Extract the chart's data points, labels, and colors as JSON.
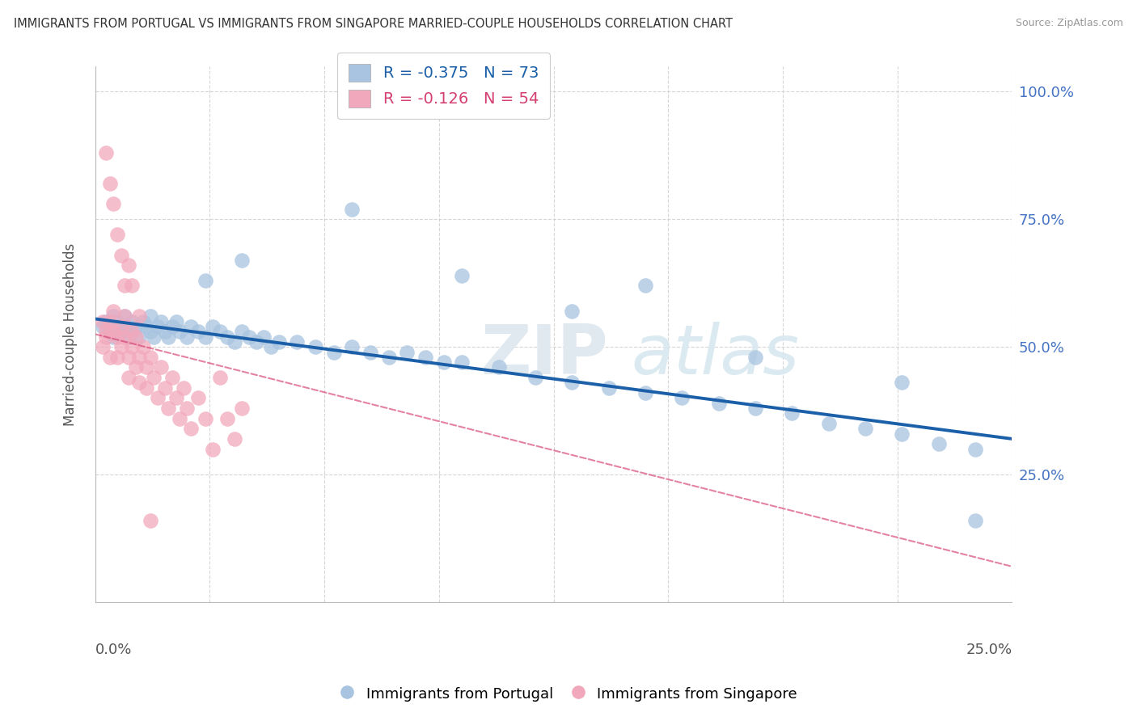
{
  "title": "IMMIGRANTS FROM PORTUGAL VS IMMIGRANTS FROM SINGAPORE MARRIED-COUPLE HOUSEHOLDS CORRELATION CHART",
  "source": "Source: ZipAtlas.com",
  "ylabel": "Married-couple Households",
  "legend_blue": {
    "R": -0.375,
    "N": 73,
    "label": "Immigrants from Portugal"
  },
  "legend_pink": {
    "R": -0.126,
    "N": 54,
    "label": "Immigrants from Singapore"
  },
  "blue_color": "#a8c4e0",
  "pink_color": "#f2a8bc",
  "blue_line_color": "#1a5fa8",
  "pink_line_color": "#d44070",
  "xlim": [
    0.0,
    0.25
  ],
  "ylim": [
    0.0,
    1.05
  ],
  "blue_x": [
    0.002,
    0.003,
    0.004,
    0.005,
    0.005,
    0.006,
    0.007,
    0.007,
    0.008,
    0.009,
    0.01,
    0.01,
    0.011,
    0.012,
    0.013,
    0.014,
    0.015,
    0.015,
    0.016,
    0.017,
    0.018,
    0.019,
    0.02,
    0.021,
    0.022,
    0.023,
    0.025,
    0.026,
    0.028,
    0.03,
    0.032,
    0.034,
    0.036,
    0.038,
    0.04,
    0.042,
    0.044,
    0.046,
    0.048,
    0.05,
    0.055,
    0.06,
    0.065,
    0.07,
    0.075,
    0.08,
    0.085,
    0.09,
    0.095,
    0.1,
    0.11,
    0.12,
    0.13,
    0.14,
    0.15,
    0.16,
    0.17,
    0.18,
    0.19,
    0.2,
    0.21,
    0.22,
    0.23,
    0.24,
    0.03,
    0.04,
    0.07,
    0.1,
    0.13,
    0.15,
    0.18,
    0.22,
    0.24
  ],
  "blue_y": [
    0.54,
    0.55,
    0.53,
    0.56,
    0.52,
    0.55,
    0.54,
    0.53,
    0.56,
    0.52,
    0.55,
    0.53,
    0.54,
    0.52,
    0.55,
    0.54,
    0.53,
    0.56,
    0.52,
    0.54,
    0.55,
    0.53,
    0.52,
    0.54,
    0.55,
    0.53,
    0.52,
    0.54,
    0.53,
    0.52,
    0.54,
    0.53,
    0.52,
    0.51,
    0.53,
    0.52,
    0.51,
    0.52,
    0.5,
    0.51,
    0.51,
    0.5,
    0.49,
    0.5,
    0.49,
    0.48,
    0.49,
    0.48,
    0.47,
    0.47,
    0.46,
    0.44,
    0.43,
    0.42,
    0.41,
    0.4,
    0.39,
    0.38,
    0.37,
    0.35,
    0.34,
    0.33,
    0.31,
    0.3,
    0.63,
    0.67,
    0.77,
    0.64,
    0.57,
    0.62,
    0.48,
    0.43,
    0.16
  ],
  "pink_x": [
    0.002,
    0.002,
    0.003,
    0.003,
    0.004,
    0.004,
    0.005,
    0.005,
    0.006,
    0.006,
    0.007,
    0.007,
    0.008,
    0.008,
    0.009,
    0.009,
    0.01,
    0.01,
    0.011,
    0.011,
    0.012,
    0.012,
    0.013,
    0.014,
    0.014,
    0.015,
    0.016,
    0.017,
    0.018,
    0.019,
    0.02,
    0.021,
    0.022,
    0.023,
    0.024,
    0.025,
    0.026,
    0.028,
    0.03,
    0.032,
    0.034,
    0.036,
    0.038,
    0.04,
    0.003,
    0.004,
    0.005,
    0.006,
    0.007,
    0.008,
    0.009,
    0.01,
    0.012,
    0.015
  ],
  "pink_y": [
    0.55,
    0.5,
    0.53,
    0.52,
    0.55,
    0.48,
    0.53,
    0.57,
    0.52,
    0.48,
    0.54,
    0.5,
    0.52,
    0.56,
    0.48,
    0.44,
    0.53,
    0.5,
    0.46,
    0.52,
    0.48,
    0.43,
    0.5,
    0.46,
    0.42,
    0.48,
    0.44,
    0.4,
    0.46,
    0.42,
    0.38,
    0.44,
    0.4,
    0.36,
    0.42,
    0.38,
    0.34,
    0.4,
    0.36,
    0.3,
    0.44,
    0.36,
    0.32,
    0.38,
    0.88,
    0.82,
    0.78,
    0.72,
    0.68,
    0.62,
    0.66,
    0.62,
    0.56,
    0.16
  ],
  "blue_line_x0": 0.0,
  "blue_line_x1": 0.25,
  "blue_line_y0": 0.555,
  "blue_line_y1": 0.32,
  "pink_line_x0": 0.0,
  "pink_line_x1": 0.25,
  "pink_line_y0": 0.525,
  "pink_line_y1": 0.07
}
